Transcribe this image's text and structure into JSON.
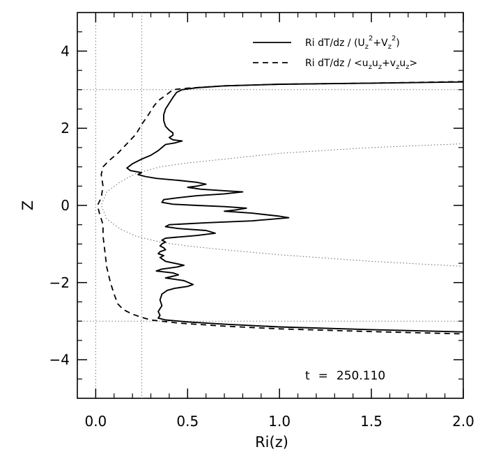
{
  "chart_data": {
    "type": "line",
    "xlabel": "Ri(z)",
    "ylabel": "Z",
    "xlim": [
      -0.1,
      2.0
    ],
    "ylim": [
      -5,
      5
    ],
    "xticks": [
      0.0,
      0.5,
      1.0,
      1.5,
      2.0
    ],
    "xtick_labels": [
      "0.0",
      "0.5",
      "1.0",
      "1.5",
      "2.0"
    ],
    "yticks": [
      -4,
      -2,
      0,
      2,
      4
    ],
    "ytick_labels": [
      "−4",
      "−2",
      "0",
      "2",
      "4"
    ],
    "grid": false,
    "legend_position": "top-right",
    "legend": [
      {
        "style": "solid",
        "prefix": "Ri dT/dz / (U",
        "sub1": "z",
        "sup1": "2",
        "mid": "+V",
        "sub2": "z",
        "sup2": "2",
        "suffix": ")"
      },
      {
        "style": "dashed",
        "prefix": "Ri dT/dz / <u",
        "a": "z",
        "b": "u",
        "c": "z",
        "d": "+v",
        "e": "z",
        "f": "u",
        "g": "z",
        "suffix": ">"
      }
    ],
    "annotation": {
      "label": "t",
      "eq": "=",
      "value": "250.110"
    },
    "reference_lines": {
      "vertical_dotted": [
        0.0,
        0.25
      ],
      "horizontal_dotted": [
        3.0,
        -3.0
      ]
    },
    "series": [
      {
        "style": "solid",
        "points": [
          [
            2.0,
            3.2
          ],
          [
            1.5,
            3.17
          ],
          [
            1.0,
            3.14
          ],
          [
            0.7,
            3.1
          ],
          [
            0.55,
            3.05
          ],
          [
            0.47,
            3.0
          ],
          [
            0.44,
            2.93
          ],
          [
            0.42,
            2.8
          ],
          [
            0.4,
            2.65
          ],
          [
            0.38,
            2.5
          ],
          [
            0.37,
            2.35
          ],
          [
            0.37,
            2.2
          ],
          [
            0.38,
            2.05
          ],
          [
            0.4,
            1.95
          ],
          [
            0.42,
            1.88
          ],
          [
            0.42,
            1.82
          ],
          [
            0.4,
            1.76
          ],
          [
            0.42,
            1.7
          ],
          [
            0.47,
            1.67
          ],
          [
            0.43,
            1.62
          ],
          [
            0.38,
            1.58
          ],
          [
            0.36,
            1.5
          ],
          [
            0.34,
            1.42
          ],
          [
            0.3,
            1.3
          ],
          [
            0.25,
            1.2
          ],
          [
            0.2,
            1.08
          ],
          [
            0.17,
            0.97
          ],
          [
            0.19,
            0.9
          ],
          [
            0.25,
            0.85
          ],
          [
            0.23,
            0.8
          ],
          [
            0.27,
            0.75
          ],
          [
            0.33,
            0.7
          ],
          [
            0.45,
            0.65
          ],
          [
            0.55,
            0.6
          ],
          [
            0.6,
            0.55
          ],
          [
            0.55,
            0.5
          ],
          [
            0.5,
            0.47
          ],
          [
            0.57,
            0.42
          ],
          [
            0.7,
            0.38
          ],
          [
            0.8,
            0.35
          ],
          [
            0.7,
            0.3
          ],
          [
            0.55,
            0.25
          ],
          [
            0.45,
            0.2
          ],
          [
            0.37,
            0.15
          ],
          [
            0.36,
            0.08
          ],
          [
            0.42,
            0.03
          ],
          [
            0.55,
            0.0
          ],
          [
            0.7,
            -0.03
          ],
          [
            0.82,
            -0.07
          ],
          [
            0.76,
            -0.12
          ],
          [
            0.7,
            -0.15
          ],
          [
            0.85,
            -0.2
          ],
          [
            1.0,
            -0.28
          ],
          [
            1.05,
            -0.32
          ],
          [
            0.85,
            -0.4
          ],
          [
            0.6,
            -0.45
          ],
          [
            0.4,
            -0.5
          ],
          [
            0.38,
            -0.55
          ],
          [
            0.45,
            -0.6
          ],
          [
            0.6,
            -0.65
          ],
          [
            0.65,
            -0.72
          ],
          [
            0.55,
            -0.78
          ],
          [
            0.45,
            -0.82
          ],
          [
            0.38,
            -0.85
          ],
          [
            0.36,
            -0.9
          ],
          [
            0.38,
            -0.95
          ],
          [
            0.36,
            -1.0
          ],
          [
            0.35,
            -1.05
          ],
          [
            0.37,
            -1.1
          ],
          [
            0.38,
            -1.15
          ],
          [
            0.35,
            -1.2
          ],
          [
            0.34,
            -1.25
          ],
          [
            0.37,
            -1.3
          ],
          [
            0.35,
            -1.35
          ],
          [
            0.38,
            -1.45
          ],
          [
            0.48,
            -1.55
          ],
          [
            0.44,
            -1.6
          ],
          [
            0.36,
            -1.65
          ],
          [
            0.33,
            -1.7
          ],
          [
            0.42,
            -1.75
          ],
          [
            0.45,
            -1.8
          ],
          [
            0.38,
            -1.88
          ],
          [
            0.48,
            -1.95
          ],
          [
            0.53,
            -2.05
          ],
          [
            0.5,
            -2.1
          ],
          [
            0.43,
            -2.15
          ],
          [
            0.39,
            -2.2
          ],
          [
            0.36,
            -2.3
          ],
          [
            0.35,
            -2.45
          ],
          [
            0.36,
            -2.6
          ],
          [
            0.34,
            -2.75
          ],
          [
            0.35,
            -2.85
          ],
          [
            0.34,
            -2.92
          ],
          [
            0.38,
            -2.97
          ],
          [
            0.5,
            -3.02
          ],
          [
            0.7,
            -3.08
          ],
          [
            1.0,
            -3.15
          ],
          [
            1.5,
            -3.22
          ],
          [
            2.0,
            -3.28
          ]
        ]
      },
      {
        "style": "dashed",
        "points": [
          [
            2.0,
            3.21
          ],
          [
            1.5,
            3.17
          ],
          [
            1.0,
            3.14
          ],
          [
            0.7,
            3.1
          ],
          [
            0.5,
            3.04
          ],
          [
            0.42,
            3.0
          ],
          [
            0.38,
            2.85
          ],
          [
            0.35,
            2.75
          ],
          [
            0.32,
            2.6
          ],
          [
            0.3,
            2.45
          ],
          [
            0.28,
            2.3
          ],
          [
            0.25,
            2.1
          ],
          [
            0.22,
            1.85
          ],
          [
            0.16,
            1.55
          ],
          [
            0.12,
            1.35
          ],
          [
            0.07,
            1.15
          ],
          [
            0.04,
            1.0
          ],
          [
            0.03,
            0.8
          ],
          [
            0.04,
            0.5
          ],
          [
            0.03,
            0.2
          ],
          [
            0.01,
            0.0
          ],
          [
            0.02,
            -0.2
          ],
          [
            0.04,
            -0.5
          ],
          [
            0.04,
            -0.8
          ],
          [
            0.05,
            -1.2
          ],
          [
            0.06,
            -1.6
          ],
          [
            0.08,
            -2.0
          ],
          [
            0.1,
            -2.3
          ],
          [
            0.12,
            -2.55
          ],
          [
            0.15,
            -2.7
          ],
          [
            0.2,
            -2.82
          ],
          [
            0.25,
            -2.9
          ],
          [
            0.3,
            -2.97
          ],
          [
            0.45,
            -3.05
          ],
          [
            0.7,
            -3.13
          ],
          [
            1.0,
            -3.2
          ],
          [
            1.5,
            -3.27
          ],
          [
            2.0,
            -3.33
          ]
        ]
      },
      {
        "style": "dotted",
        "points": [
          [
            2.0,
            1.6
          ],
          [
            1.5,
            1.5
          ],
          [
            1.0,
            1.35
          ],
          [
            0.7,
            1.2
          ],
          [
            0.5,
            1.1
          ],
          [
            0.35,
            1.0
          ],
          [
            0.22,
            0.83
          ],
          [
            0.13,
            0.6
          ],
          [
            0.06,
            0.35
          ],
          [
            0.03,
            0.0
          ],
          [
            0.06,
            -0.35
          ],
          [
            0.13,
            -0.6
          ],
          [
            0.22,
            -0.8
          ],
          [
            0.35,
            -0.95
          ],
          [
            0.5,
            -1.05
          ],
          [
            0.7,
            -1.15
          ],
          [
            1.0,
            -1.28
          ],
          [
            1.5,
            -1.45
          ],
          [
            2.0,
            -1.58
          ]
        ]
      }
    ]
  }
}
